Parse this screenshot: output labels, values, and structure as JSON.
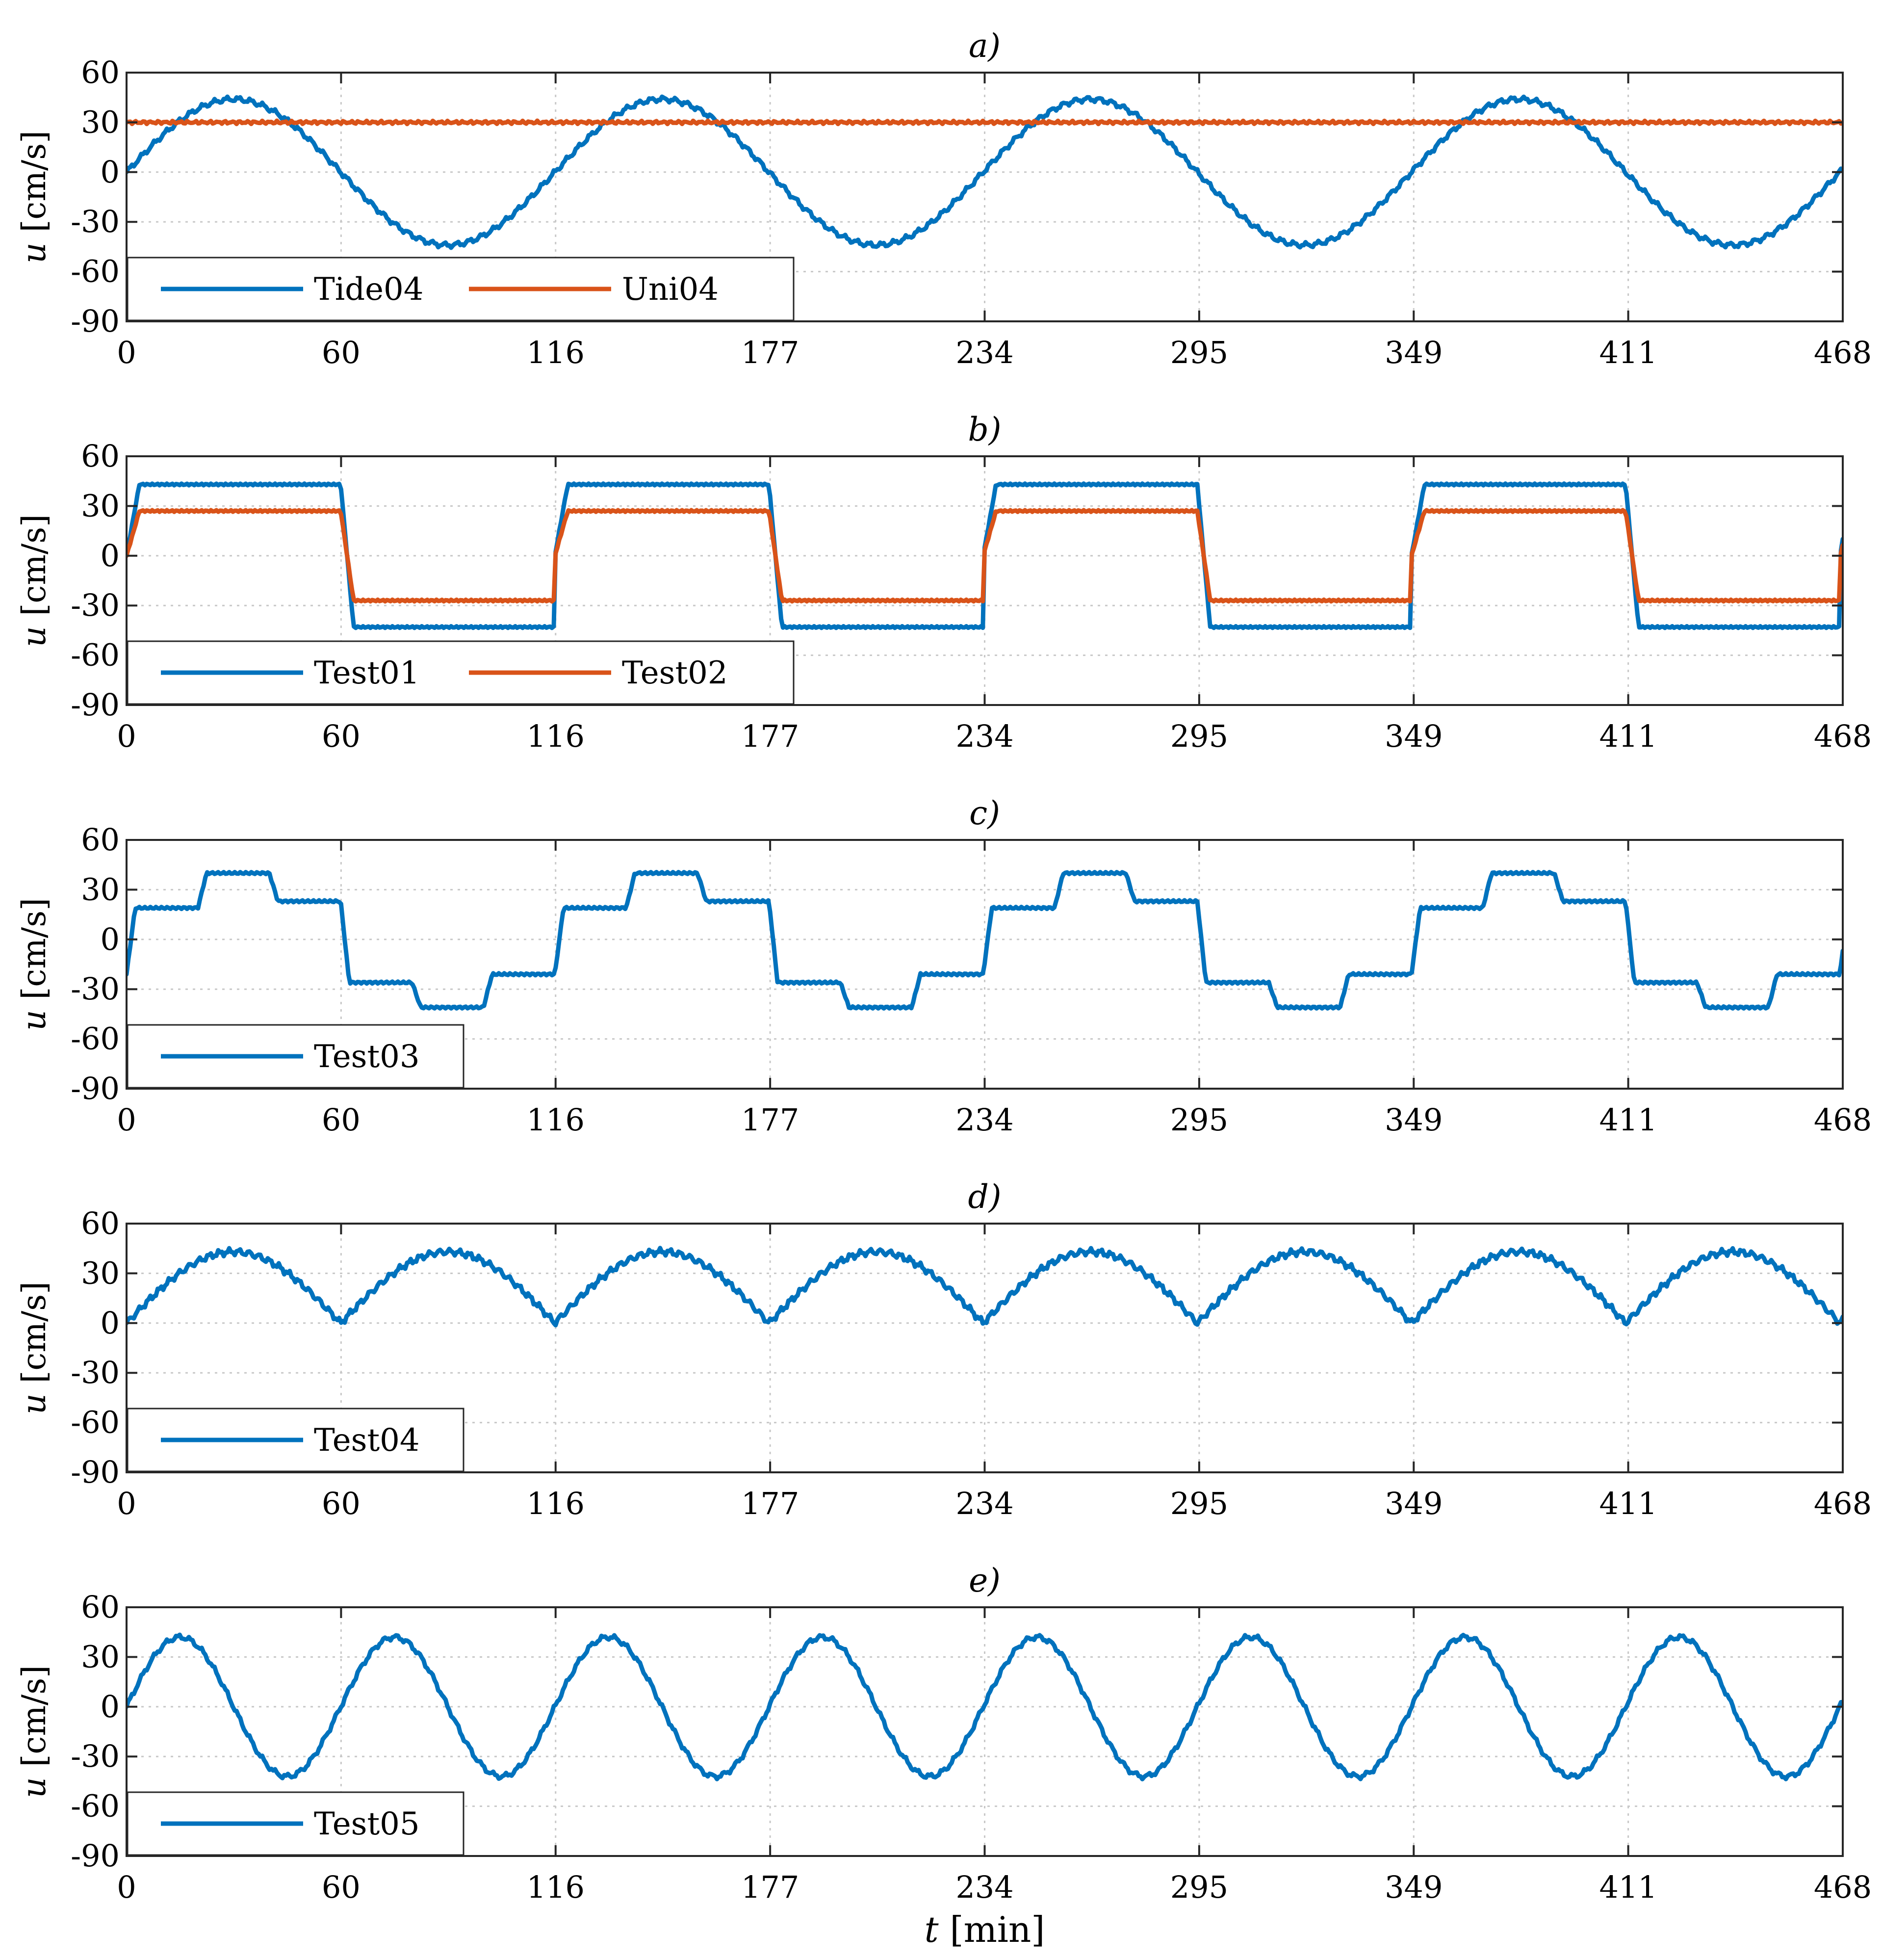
{
  "chart_data": [
    {
      "type": "line",
      "title": "a)",
      "xlabel": "",
      "ylabel": "u [cm/s]",
      "ylabel_var": "u",
      "ylabel_unit": "[cm/s]",
      "xlim": [
        0,
        468
      ],
      "ylim": [
        -90,
        60
      ],
      "xticks": [
        "0",
        "60",
        "116",
        "177",
        "234",
        "295",
        "349",
        "411",
        "468"
      ],
      "yticks": [
        "60",
        "30",
        "0",
        "-30",
        "-60",
        "-90"
      ],
      "grid": true,
      "legend_position": "bottom-left",
      "series": [
        {
          "name": "Tide04",
          "color": "#0072BD",
          "shape": "sine",
          "period": 116.8,
          "amplitude": 44,
          "offset": 0,
          "phase": 0
        },
        {
          "name": "Uni04",
          "color": "#D95319",
          "shape": "constant",
          "value": 30
        }
      ]
    },
    {
      "type": "line",
      "title": "b)",
      "xlabel": "",
      "ylabel": "u [cm/s]",
      "ylabel_var": "u",
      "ylabel_unit": "[cm/s]",
      "xlim": [
        0,
        468
      ],
      "ylim": [
        -90,
        60
      ],
      "xticks": [
        "0",
        "60",
        "116",
        "177",
        "234",
        "295",
        "349",
        "411",
        "468"
      ],
      "yticks": [
        "60",
        "30",
        "0",
        "-30",
        "-60",
        "-90"
      ],
      "grid": true,
      "legend_position": "bottom-left",
      "series": [
        {
          "name": "Test01",
          "color": "#0072BD",
          "shape": "square",
          "period": 116.8,
          "amplitude": 43
        },
        {
          "name": "Test02",
          "color": "#D95319",
          "shape": "square",
          "period": 116.8,
          "amplitude": 27
        }
      ]
    },
    {
      "type": "line",
      "title": "c)",
      "xlabel": "",
      "ylabel": "u [cm/s]",
      "ylabel_var": "u",
      "ylabel_unit": "[cm/s]",
      "xlim": [
        0,
        468
      ],
      "ylim": [
        -90,
        60
      ],
      "xticks": [
        "0",
        "60",
        "116",
        "177",
        "234",
        "295",
        "349",
        "411",
        "468"
      ],
      "yticks": [
        "60",
        "30",
        "0",
        "-30",
        "-60",
        "-90"
      ],
      "grid": true,
      "legend_position": "bottom-left",
      "series": [
        {
          "name": "Test03",
          "color": "#0072BD",
          "shape": "steps",
          "period": 116.8,
          "levels": [
            19,
            40,
            23,
            -26,
            -41,
            -21
          ]
        }
      ]
    },
    {
      "type": "line",
      "title": "d)",
      "xlabel": "",
      "ylabel": "u [cm/s]",
      "ylabel_var": "u",
      "ylabel_unit": "[cm/s]",
      "xlim": [
        0,
        468
      ],
      "ylim": [
        -90,
        60
      ],
      "xticks": [
        "0",
        "60",
        "116",
        "177",
        "234",
        "295",
        "349",
        "411",
        "468"
      ],
      "yticks": [
        "60",
        "30",
        "0",
        "-30",
        "-60",
        "-90"
      ],
      "grid": true,
      "legend_position": "bottom-left",
      "series": [
        {
          "name": "Test04",
          "color": "#0072BD",
          "shape": "abs-sine",
          "period": 116.8,
          "amplitude": 43
        }
      ]
    },
    {
      "type": "line",
      "title": "e)",
      "xlabel": "t [min]",
      "xlabel_var": "t",
      "xlabel_unit": "[min]",
      "ylabel": "u [cm/s]",
      "ylabel_var": "u",
      "ylabel_unit": "[cm/s]",
      "xlim": [
        0,
        468
      ],
      "ylim": [
        -90,
        60
      ],
      "xticks": [
        "0",
        "60",
        "116",
        "177",
        "234",
        "295",
        "349",
        "411",
        "468"
      ],
      "yticks": [
        "60",
        "30",
        "0",
        "-30",
        "-60",
        "-90"
      ],
      "grid": true,
      "legend_position": "bottom-left",
      "series": [
        {
          "name": "Test05",
          "color": "#0072BD",
          "shape": "sine",
          "period": 58.4,
          "amplitude": 42,
          "offset": 0,
          "phase": 0
        }
      ]
    }
  ]
}
